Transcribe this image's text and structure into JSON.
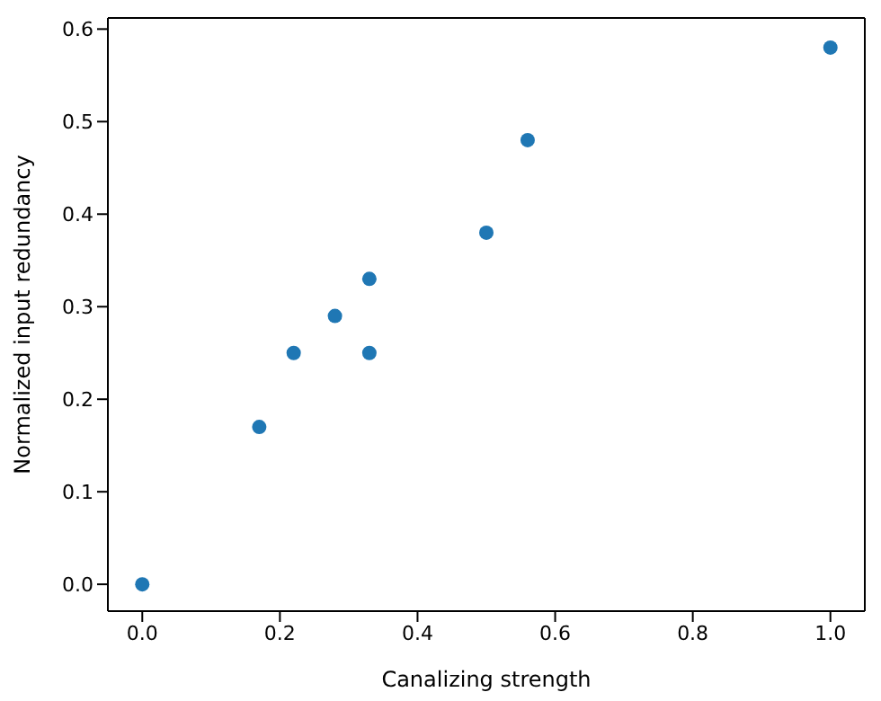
{
  "chart_data": {
    "type": "scatter",
    "xlabel": "Canalizing strength",
    "ylabel": "Normalized input redundancy",
    "x": [
      0,
      0.17,
      0.22,
      0.28,
      0.33,
      0.33,
      0.5,
      0.56,
      1
    ],
    "series": [
      {
        "color": "#1f77b4",
        "values": [
          0,
          0.17,
          0.25,
          0.29,
          0.33,
          0.25,
          0.38,
          0.48,
          0.58
        ]
      }
    ],
    "xlim": [
      -0.05,
      1.05
    ],
    "ylim": [
      -0.029,
      0.612
    ],
    "xticks": [
      {
        "value": 0,
        "label": "0.0"
      },
      {
        "value": 0.2,
        "label": "0.2"
      },
      {
        "value": 0.4,
        "label": "0.4"
      },
      {
        "value": 0.6,
        "label": "0.6"
      },
      {
        "value": 0.8,
        "label": "0.8"
      },
      {
        "value": 1,
        "label": "1.0"
      }
    ],
    "yticks": [
      {
        "value": 0,
        "label": "0.0"
      },
      {
        "value": 0.1,
        "label": "0.1"
      },
      {
        "value": 0.2,
        "label": "0.2"
      },
      {
        "value": 0.3,
        "label": "0.3"
      },
      {
        "value": 0.4,
        "label": "0.4"
      },
      {
        "value": 0.5,
        "label": "0.5"
      },
      {
        "value": 0.6,
        "label": "0.6"
      }
    ],
    "grid": false,
    "legend": false,
    "marker": "circle"
  }
}
